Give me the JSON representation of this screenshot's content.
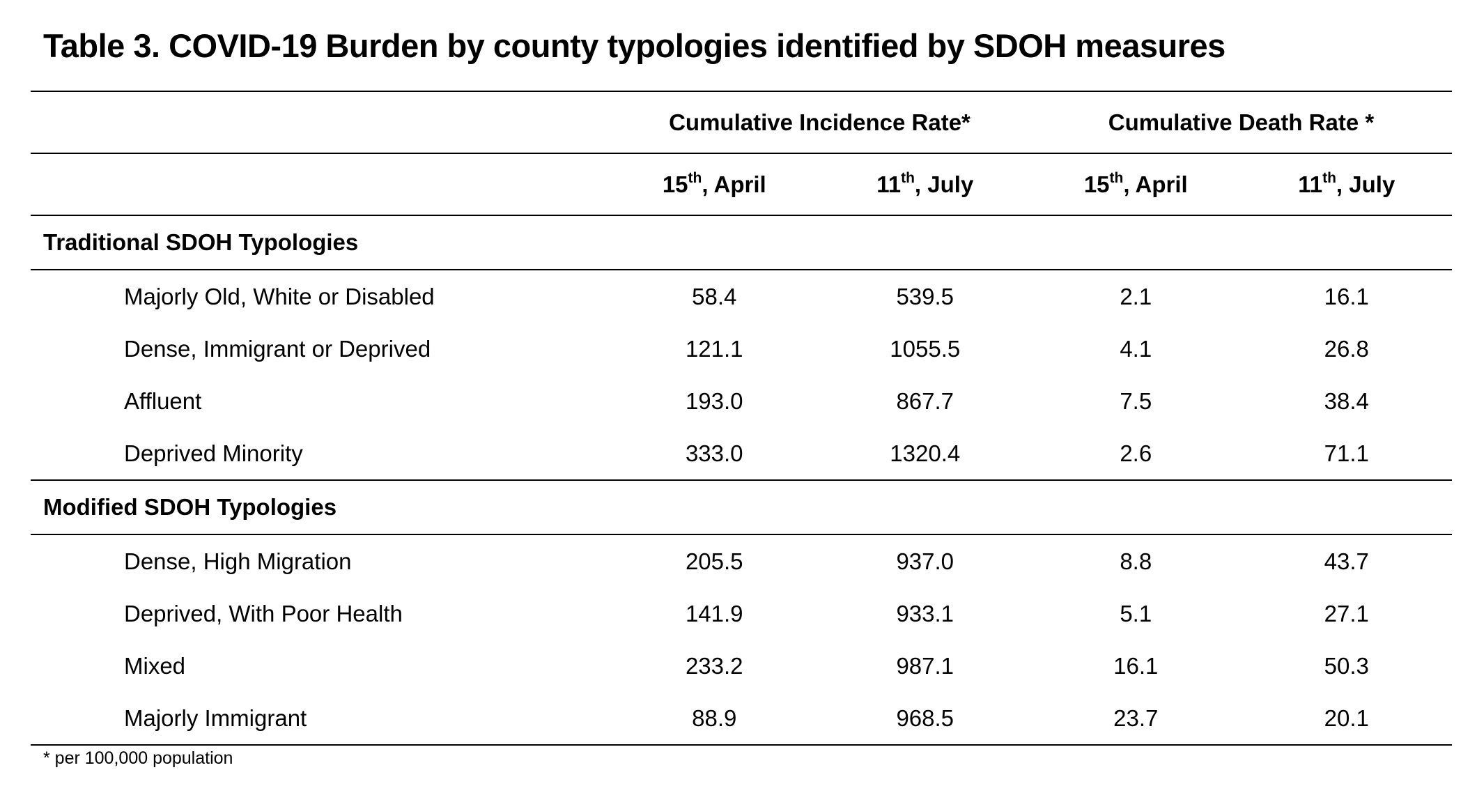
{
  "title": "Table 3. COVID-19 Burden by county typologies identified by SDOH measures",
  "header": {
    "group_incidence": "Cumulative Incidence Rate*",
    "group_death": "Cumulative Death Rate *",
    "col_april_num": "15",
    "col_april_sup": "th",
    "col_april_rest": ", April",
    "col_july_num": "11",
    "col_july_sup": "th",
    "col_july_rest": ", July"
  },
  "sections": [
    {
      "name": "Traditional SDOH Typologies",
      "rows": [
        {
          "label": "Majorly Old, White or Disabled",
          "inc_april": "58.4",
          "inc_july": "539.5",
          "death_april": "2.1",
          "death_july": "16.1"
        },
        {
          "label": "Dense, Immigrant or Deprived",
          "inc_april": "121.1",
          "inc_july": "1055.5",
          "death_april": "4.1",
          "death_july": "26.8"
        },
        {
          "label": "Affluent",
          "inc_april": "193.0",
          "inc_july": "867.7",
          "death_april": "7.5",
          "death_july": "38.4"
        },
        {
          "label": "Deprived Minority",
          "inc_april": "333.0",
          "inc_july": "1320.4",
          "death_april": "2.6",
          "death_july": "71.1"
        }
      ]
    },
    {
      "name": "Modified SDOH Typologies",
      "rows": [
        {
          "label": "Dense, High Migration",
          "inc_april": "205.5",
          "inc_july": "937.0",
          "death_april": "8.8",
          "death_july": "43.7"
        },
        {
          "label": "Deprived, With Poor Health",
          "inc_april": "141.9",
          "inc_july": "933.1",
          "death_april": "5.1",
          "death_july": "27.1"
        },
        {
          "label": "Mixed",
          "inc_april": "233.2",
          "inc_july": "987.1",
          "death_april": "16.1",
          "death_july": "50.3"
        },
        {
          "label": "Majorly Immigrant",
          "inc_april": "88.9",
          "inc_july": "968.5",
          "death_april": "23.7",
          "death_july": "20.1"
        }
      ]
    }
  ],
  "footnote": "* per 100,000 population"
}
